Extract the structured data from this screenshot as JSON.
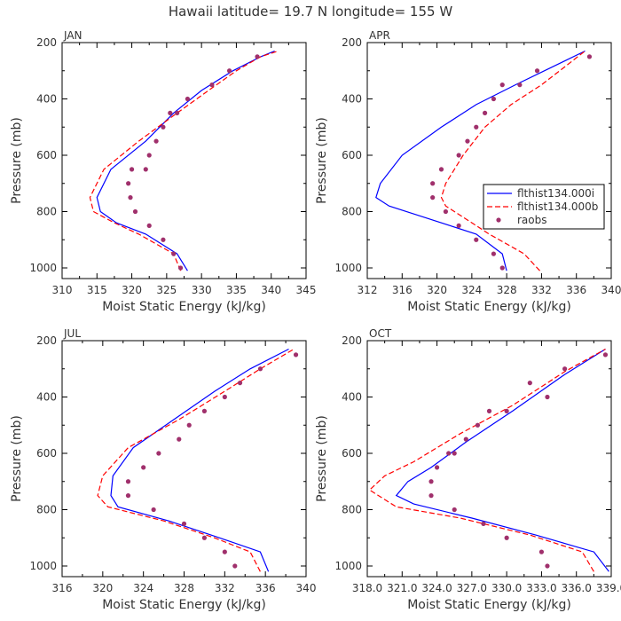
{
  "title": "Hawaii  latitude= 19.7 N longitude= 155 W",
  "colors": {
    "model1": "#0000ff",
    "model2": "#ff0000",
    "obs": "#a0306c"
  },
  "legend": {
    "entries": [
      "flthist134.000i",
      "flthist134.000b",
      "raobs"
    ]
  },
  "chart_data": [
    {
      "type": "line",
      "panel": "JAN",
      "xlabel": "Moist Static Energy (kJ/kg)",
      "ylabel": "Pressure (mb)",
      "xlim": [
        310,
        345
      ],
      "xticks": [
        310,
        315,
        320,
        325,
        330,
        335,
        340,
        345
      ],
      "xtick_labels": [
        "310",
        "315",
        "320",
        "325",
        "330",
        "335",
        "340",
        "345"
      ],
      "ylim": [
        200,
        1020
      ],
      "yticks": [
        200,
        400,
        600,
        800,
        1000
      ],
      "y_inverted": true,
      "series": [
        {
          "name": "flthist134.000i",
          "style": "solid",
          "x": [
            328.0,
            326.5,
            322.0,
            317.8,
            315.5,
            315.0,
            317.0,
            322.0,
            326.0,
            330.0,
            334.5,
            338.5,
            340.5
          ],
          "y": [
            1010,
            950,
            880,
            840,
            800,
            750,
            650,
            550,
            450,
            370,
            300,
            250,
            230
          ]
        },
        {
          "name": "flthist134.000b",
          "style": "dashed",
          "x": [
            327.0,
            326.0,
            321.0,
            317.5,
            314.5,
            314.0,
            316.0,
            321.0,
            326.5,
            331.0,
            335.0,
            338.5,
            341.0
          ],
          "y": [
            1010,
            950,
            880,
            840,
            800,
            750,
            650,
            550,
            450,
            370,
            300,
            250,
            230
          ]
        },
        {
          "name": "raobs",
          "style": "points",
          "x": [
            327.0,
            326.0,
            324.5,
            322.5,
            320.5,
            319.8,
            319.5,
            320.0,
            322.0,
            322.5,
            323.5,
            324.5,
            325.5,
            326.5,
            328.0,
            331.5,
            334.0,
            338.0
          ],
          "y": [
            1000,
            950,
            900,
            850,
            800,
            750,
            700,
            650,
            650,
            600,
            550,
            500,
            450,
            450,
            400,
            350,
            300,
            250
          ]
        }
      ]
    },
    {
      "type": "line",
      "panel": "APR",
      "xlabel": "Moist Static Energy (kJ/kg)",
      "ylabel": "Pressure (mb)",
      "xlim": [
        312,
        340
      ],
      "xticks": [
        312,
        316,
        320,
        324,
        328,
        332,
        336,
        340
      ],
      "xtick_labels": [
        "312",
        "316",
        "320",
        "324",
        "328",
        "332",
        "336",
        "340"
      ],
      "ylim": [
        200,
        1020
      ],
      "yticks": [
        200,
        400,
        600,
        800,
        1000
      ],
      "y_inverted": true,
      "series": [
        {
          "name": "flthist134.000i",
          "style": "solid",
          "x": [
            328.0,
            327.5,
            324.5,
            318.5,
            314.5,
            313.0,
            313.5,
            316.0,
            320.5,
            324.5,
            329.0,
            333.0,
            337.0
          ],
          "y": [
            1010,
            950,
            880,
            820,
            780,
            750,
            700,
            600,
            500,
            420,
            350,
            290,
            230
          ]
        },
        {
          "name": "flthist134.000b",
          "style": "dashed",
          "x": [
            331.8,
            330.0,
            326.0,
            323.0,
            321.0,
            320.5,
            321.0,
            323.0,
            325.5,
            328.5,
            332.0,
            334.5,
            337.0
          ],
          "y": [
            1010,
            950,
            880,
            820,
            780,
            750,
            700,
            600,
            500,
            420,
            350,
            290,
            230
          ]
        },
        {
          "name": "raobs",
          "style": "points",
          "x": [
            327.5,
            326.5,
            324.5,
            322.5,
            321.0,
            319.5,
            319.5,
            320.5,
            322.5,
            323.5,
            324.5,
            325.5,
            326.5,
            327.5,
            329.5,
            331.5,
            337.5
          ],
          "y": [
            1000,
            950,
            900,
            850,
            800,
            750,
            700,
            650,
            600,
            550,
            500,
            450,
            400,
            350,
            350,
            300,
            250
          ]
        }
      ]
    },
    {
      "type": "line",
      "panel": "JUL",
      "xlabel": "Moist Static Energy (kJ/kg)",
      "ylabel": "Pressure (mb)",
      "xlim": [
        316,
        340
      ],
      "xticks": [
        316,
        320,
        324,
        328,
        332,
        336,
        340
      ],
      "xtick_labels": [
        "316",
        "320",
        "324",
        "328",
        "332",
        "336",
        "340"
      ],
      "ylim": [
        200,
        1020
      ],
      "yticks": [
        200,
        400,
        600,
        800,
        1000
      ],
      "y_inverted": true,
      "series": [
        {
          "name": "flthist134.000i",
          "style": "solid",
          "x": [
            336.3,
            335.5,
            331.5,
            326.5,
            321.5,
            320.8,
            321.0,
            323.0,
            327.0,
            331.0,
            334.5,
            338.3
          ],
          "y": [
            1020,
            950,
            900,
            840,
            790,
            750,
            680,
            580,
            480,
            380,
            300,
            230
          ]
        },
        {
          "name": "flthist134.000b",
          "style": "dashed",
          "x": [
            335.5,
            334.5,
            331.0,
            326.0,
            320.5,
            319.5,
            320.0,
            322.5,
            327.5,
            332.0,
            335.5,
            338.8
          ],
          "y": [
            1020,
            950,
            900,
            840,
            790,
            750,
            680,
            580,
            480,
            380,
            300,
            230
          ]
        },
        {
          "name": "raobs",
          "style": "points",
          "x": [
            333.0,
            332.0,
            330.0,
            328.0,
            325.0,
            322.5,
            322.5,
            324.0,
            325.5,
            327.5,
            328.5,
            330.0,
            332.0,
            333.5,
            335.5,
            339.0
          ],
          "y": [
            1000,
            950,
            900,
            850,
            800,
            750,
            700,
            650,
            600,
            550,
            500,
            450,
            400,
            350,
            300,
            250
          ]
        }
      ]
    },
    {
      "type": "line",
      "panel": "OCT",
      "xlabel": "Moist Static Energy (kJ/kg)",
      "ylabel": "Pressure (mb)",
      "xlim": [
        318.0,
        339.0
      ],
      "xticks": [
        318.0,
        321.0,
        324.0,
        327.0,
        330.0,
        333.0,
        336.0,
        339.0
      ],
      "xtick_labels": [
        "318.0",
        "321.0",
        "324.0",
        "327.0",
        "330.0",
        "333.0",
        "336.0",
        "339.0"
      ],
      "ylim": [
        200,
        1020
      ],
      "yticks": [
        200,
        400,
        600,
        800,
        1000
      ],
      "y_inverted": true,
      "series": [
        {
          "name": "flthist134.000i",
          "style": "solid",
          "x": [
            338.8,
            337.5,
            332.5,
            327.0,
            322.0,
            320.5,
            321.5,
            323.5,
            326.5,
            330.5,
            335.0,
            338.5
          ],
          "y": [
            1020,
            950,
            890,
            830,
            780,
            750,
            700,
            650,
            560,
            450,
            320,
            230
          ]
        },
        {
          "name": "flthist134.000b",
          "style": "dashed",
          "x": [
            337.5,
            336.5,
            332.0,
            326.0,
            320.5,
            318.2,
            319.5,
            322.0,
            326.0,
            330.5,
            335.0,
            338.5
          ],
          "y": [
            1020,
            950,
            890,
            830,
            790,
            730,
            680,
            630,
            530,
            430,
            310,
            230
          ]
        },
        {
          "name": "raobs",
          "style": "points",
          "x": [
            333.5,
            333.0,
            330.0,
            328.0,
            325.5,
            323.5,
            323.5,
            324.0,
            325.0,
            325.5,
            326.5,
            327.5,
            328.5,
            330.0,
            332.0,
            333.5,
            335.0,
            338.5
          ],
          "y": [
            1000,
            950,
            900,
            850,
            800,
            750,
            700,
            650,
            600,
            600,
            550,
            500,
            450,
            450,
            350,
            400,
            300,
            250
          ]
        }
      ]
    }
  ]
}
